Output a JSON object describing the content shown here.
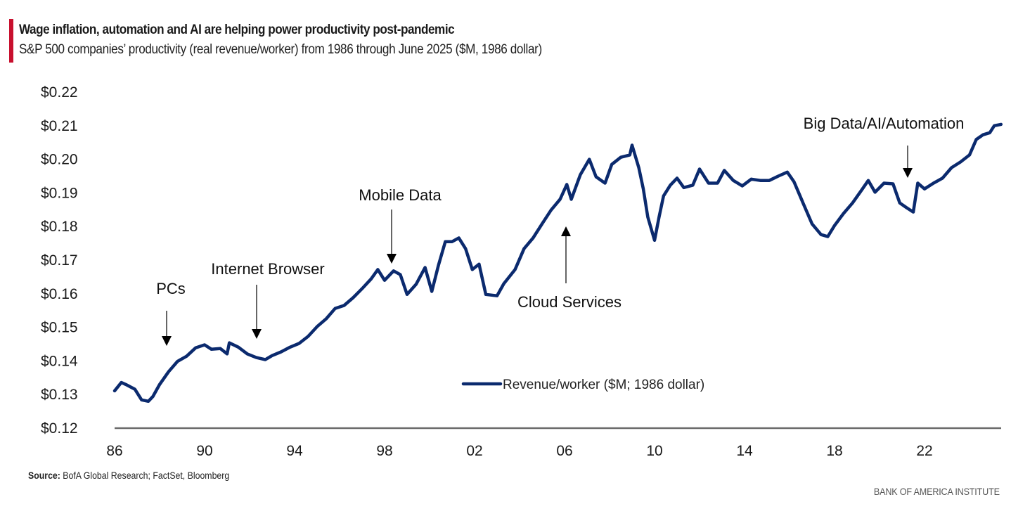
{
  "header": {
    "title": "Wage inflation, automation and AI are helping power productivity post-pandemic",
    "subtitle": "S&P 500 companies’ productivity (real revenue/worker) from 1986 through June 2025 ($M, 1986 dollar)",
    "accent_color": "#c8102e"
  },
  "footer": {
    "source_label": "Source:",
    "source_text": " BofA Global Research; FactSet, Bloomberg",
    "brand": "BANK OF AMERICA INSTITUTE"
  },
  "chart_data": {
    "type": "line",
    "title": "Wage inflation, automation and AI are helping power productivity post-pandemic",
    "subtitle": "S&P 500 companies’ productivity (real revenue/worker) from 1986 through June 2025 ($M, 1986 dollar)",
    "xlabel": "",
    "ylabel": "",
    "xlim": [
      1986,
      2025.5
    ],
    "ylim": [
      0.12,
      0.22
    ],
    "grid": false,
    "line_color": "#0b2a6e",
    "x_ticks": [
      {
        "value": 1986,
        "label": "86"
      },
      {
        "value": 1990,
        "label": "90"
      },
      {
        "value": 1994,
        "label": "94"
      },
      {
        "value": 1998,
        "label": "98"
      },
      {
        "value": 2002,
        "label": "02"
      },
      {
        "value": 2006,
        "label": "06"
      },
      {
        "value": 2010,
        "label": "10"
      },
      {
        "value": 2014,
        "label": "14"
      },
      {
        "value": 2018,
        "label": "18"
      },
      {
        "value": 2022,
        "label": "22"
      }
    ],
    "y_ticks": [
      {
        "value": 0.22,
        "label": "$0.22"
      },
      {
        "value": 0.21,
        "label": "$0.21"
      },
      {
        "value": 0.2,
        "label": "$0.20"
      },
      {
        "value": 0.19,
        "label": "$0.19"
      },
      {
        "value": 0.18,
        "label": "$0.18"
      },
      {
        "value": 0.17,
        "label": "$0.17"
      },
      {
        "value": 0.16,
        "label": "$0.16"
      },
      {
        "value": 0.15,
        "label": "$0.15"
      },
      {
        "value": 0.14,
        "label": "$0.14"
      },
      {
        "value": 0.13,
        "label": "$0.13"
      },
      {
        "value": 0.12,
        "label": "$0.12"
      }
    ],
    "legend": {
      "position": "bottom-center",
      "entries": [
        "Revenue/worker ($M; 1986 dollar)"
      ]
    },
    "series": [
      {
        "name": "Revenue/worker ($M; 1986 dollar)",
        "x": [
          1986.0,
          1986.3,
          1986.5,
          1986.9,
          1987.2,
          1987.5,
          1987.7,
          1988.0,
          1988.4,
          1988.8,
          1989.2,
          1989.6,
          1990.0,
          1990.3,
          1990.7,
          1991.0,
          1991.1,
          1991.5,
          1991.9,
          1992.3,
          1992.7,
          1993.0,
          1993.4,
          1993.8,
          1994.2,
          1994.6,
          1995.0,
          1995.4,
          1995.8,
          1996.2,
          1996.6,
          1997.0,
          1997.4,
          1997.7,
          1998.0,
          1998.4,
          1998.7,
          1999.0,
          1999.4,
          1999.8,
          2000.1,
          2000.4,
          2000.7,
          2001.0,
          2001.3,
          2001.6,
          2001.9,
          2002.2,
          2002.5,
          2003.0,
          2003.3,
          2003.8,
          2004.2,
          2004.6,
          2005.0,
          2005.4,
          2005.8,
          2006.1,
          2006.3,
          2006.7,
          2007.1,
          2007.4,
          2007.8,
          2008.1,
          2008.5,
          2008.9,
          2009.0,
          2009.3,
          2009.5,
          2009.7,
          2010.0,
          2010.2,
          2010.4,
          2010.7,
          2011.0,
          2011.3,
          2011.7,
          2012.0,
          2012.4,
          2012.8,
          2013.1,
          2013.5,
          2013.9,
          2014.3,
          2014.7,
          2015.1,
          2015.5,
          2015.9,
          2016.2,
          2016.6,
          2017.0,
          2017.4,
          2017.7,
          2018.0,
          2018.4,
          2018.8,
          2019.2,
          2019.5,
          2019.8,
          2020.2,
          2020.6,
          2020.9,
          2021.2,
          2021.5,
          2021.7,
          2022.0,
          2022.4,
          2022.8,
          2023.2,
          2023.6,
          2024.0,
          2024.3,
          2024.6,
          2024.9,
          2025.1,
          2025.4
        ],
        "values": [
          0.1311,
          0.1336,
          0.133,
          0.1316,
          0.1284,
          0.128,
          0.1294,
          0.133,
          0.1368,
          0.1399,
          0.1414,
          0.1439,
          0.1448,
          0.1435,
          0.1437,
          0.1421,
          0.1454,
          0.1441,
          0.1421,
          0.141,
          0.1404,
          0.1416,
          0.1427,
          0.1441,
          0.1452,
          0.1473,
          0.1502,
          0.1525,
          0.1556,
          0.1565,
          0.1588,
          0.1615,
          0.1644,
          0.1672,
          0.164,
          0.1668,
          0.1657,
          0.1598,
          0.1628,
          0.1678,
          0.1607,
          0.1686,
          0.1755,
          0.1755,
          0.1766,
          0.1734,
          0.1672,
          0.1688,
          0.1598,
          0.1594,
          0.163,
          0.1672,
          0.1734,
          0.1766,
          0.1808,
          0.1849,
          0.1881,
          0.1925,
          0.1881,
          0.1954,
          0.2,
          0.1948,
          0.1929,
          0.1985,
          0.2006,
          0.2013,
          0.2042,
          0.1975,
          0.1912,
          0.1828,
          0.1759,
          0.1828,
          0.1891,
          0.1923,
          0.1944,
          0.1916,
          0.1923,
          0.1971,
          0.1929,
          0.1929,
          0.1967,
          0.1937,
          0.1921,
          0.1941,
          0.1937,
          0.1937,
          0.195,
          0.1962,
          0.1933,
          0.187,
          0.1808,
          0.1776,
          0.177,
          0.1803,
          0.1839,
          0.187,
          0.1908,
          0.1937,
          0.1902,
          0.1929,
          0.1927,
          0.187,
          0.1856,
          0.1843,
          0.1929,
          0.1912,
          0.1929,
          0.1944,
          0.1975,
          0.1992,
          0.2013,
          0.2059,
          0.2073,
          0.2079,
          0.21,
          0.2104
        ]
      }
    ],
    "annotations": [
      {
        "text": "PCs",
        "x": 1988.1,
        "arrow": "down"
      },
      {
        "text": "Internet Browser",
        "x": 1992.3,
        "arrow": "down"
      },
      {
        "text": "Mobile Data",
        "x": 1998.3,
        "arrow": "down"
      },
      {
        "text": "Cloud Services",
        "x": 2006.6,
        "arrow": "up"
      },
      {
        "text": "Big Data/AI/Automation",
        "x": 2021.3,
        "arrow": "down"
      }
    ]
  }
}
